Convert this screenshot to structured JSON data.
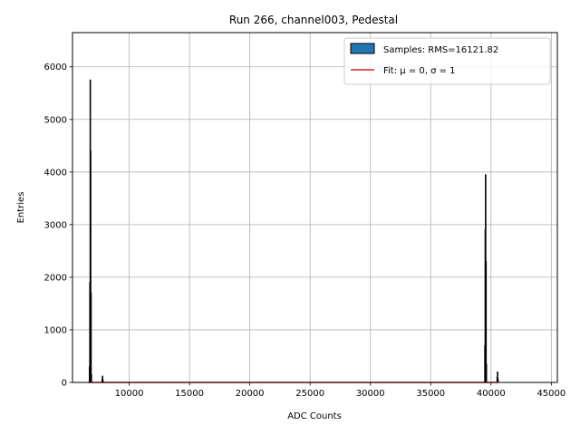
{
  "chart_data": {
    "type": "bar",
    "title": "Run 266, channel003, Pedestal",
    "xlabel": "ADC Counts",
    "ylabel": "Entries",
    "xlim": [
      5300,
      45500
    ],
    "ylim": [
      0,
      6650
    ],
    "xticks": [
      10000,
      15000,
      20000,
      25000,
      30000,
      35000,
      40000,
      45000
    ],
    "yticks": [
      0,
      1000,
      2000,
      3000,
      4000,
      5000,
      6000
    ],
    "grid": true,
    "legend_position": "top-right",
    "series": [
      {
        "name": "Samples: RMS=16121.82",
        "kind": "histogram",
        "color": "#1f77b4",
        "edge_color": "#000000",
        "bins": [
          {
            "x": 6700,
            "y": 300
          },
          {
            "x": 6730,
            "y": 1900
          },
          {
            "x": 6760,
            "y": 5750
          },
          {
            "x": 6790,
            "y": 4400
          },
          {
            "x": 6820,
            "y": 1700
          },
          {
            "x": 6850,
            "y": 150
          },
          {
            "x": 7750,
            "y": 60
          },
          {
            "x": 7780,
            "y": 120
          },
          {
            "x": 7810,
            "y": 40
          },
          {
            "x": 39480,
            "y": 700
          },
          {
            "x": 39510,
            "y": 2900
          },
          {
            "x": 39540,
            "y": 3950
          },
          {
            "x": 39570,
            "y": 2300
          },
          {
            "x": 39600,
            "y": 350
          },
          {
            "x": 40500,
            "y": 100
          },
          {
            "x": 40530,
            "y": 200
          },
          {
            "x": 40560,
            "y": 60
          }
        ]
      },
      {
        "name": "Fit: μ = 0, σ = 1",
        "kind": "line",
        "color": "#d62728",
        "x": [
          6600,
          40600
        ],
        "y": [
          0,
          0
        ]
      }
    ]
  }
}
